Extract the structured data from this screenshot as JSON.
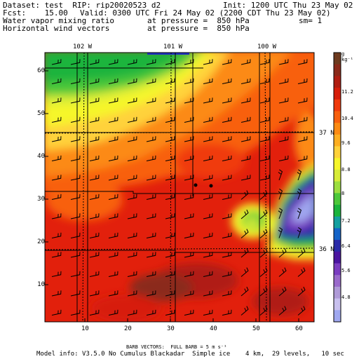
{
  "header": {
    "dataset_line": "Dataset: test  RIP: rip20020523 d2",
    "init_line": "Init: 1200 UTC Thu 23 May 02",
    "fcst_line": "Fcst:    15.00",
    "valid_line": "Valid: 0300 UTC Fri 24 May 02 (2200 CDT Thu 23 May 02)",
    "field1_name": "Water vapor mixing ratio",
    "field1_level": "at pressure =  850 hPa",
    "field1_sm": "sm= 1",
    "field2_name": "Horizontal wind vectors",
    "field2_level": "at pressure =  850 hPa"
  },
  "map": {
    "lon_labels": [
      "102 W",
      "101 W",
      "100 W"
    ],
    "lat_labels": [
      "37 N",
      "36 N"
    ],
    "y_ticks": [
      "60",
      "50",
      "40",
      "30",
      "20",
      "10"
    ],
    "x_ticks": [
      "10",
      "20",
      "30",
      "40",
      "50",
      "60"
    ],
    "stations": 2
  },
  "colorbar": {
    "unit_label": "g kg⁻¹",
    "labels": [
      "11.2",
      "10.4",
      "9.6",
      "8.8",
      "8",
      "7.2",
      "6.4",
      "5.6",
      "4.8"
    ],
    "colors": [
      "#6e3b1f",
      "#8b2a1a",
      "#b01e12",
      "#d71e0a",
      "#f03a0c",
      "#f8600e",
      "#fc8a12",
      "#fdae20",
      "#ffd23a",
      "#f6f62a",
      "#d7ec38",
      "#9cde3f",
      "#4cc83a",
      "#1ab43c",
      "#14a0a0",
      "#1464c8",
      "#2a2aa8",
      "#4a14a0",
      "#7a3cc0",
      "#9a6acb",
      "#b09bd8",
      "#c8c0ee",
      "#a0a8f0"
    ]
  },
  "footer": {
    "barb_line": "BARB VECTORS:  FULL BARB = 5 m s⁻¹",
    "model_line": "Model info: V3.5.0 No Cumulus Blackadar  Simple ice    4 km,  29 levels,   10 sec"
  }
}
